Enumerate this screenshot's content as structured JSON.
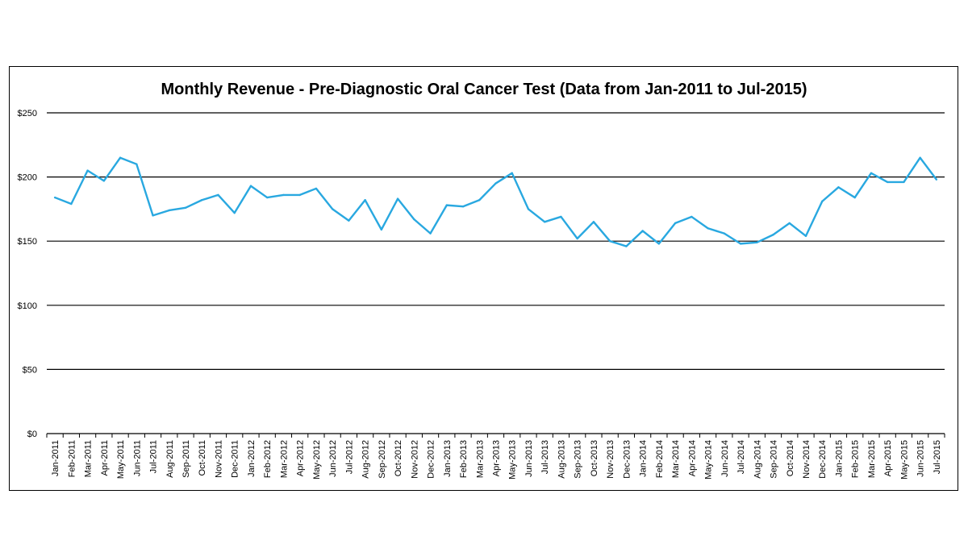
{
  "chart_data": {
    "type": "line",
    "title": "Monthly Revenue - Pre-Diagnostic Oral Cancer Test (Data from Jan-2011 to Jul-2015)",
    "xlabel": "",
    "ylabel": "",
    "ylim": [
      0,
      250
    ],
    "yticks": [
      0,
      50,
      100,
      150,
      200,
      250
    ],
    "ytick_labels": [
      "$0",
      "$50",
      "$100",
      "$150",
      "$200",
      "$250"
    ],
    "grid": true,
    "line_color": "#29a8e0",
    "categories": [
      "Jan-2011",
      "Feb-2011",
      "Mar-2011",
      "Apr-2011",
      "May-2011",
      "Jun-2011",
      "Jul-2011",
      "Aug-2011",
      "Sep-2011",
      "Oct-2011",
      "Nov-2011",
      "Dec-2011",
      "Jan-2012",
      "Feb-2012",
      "Mar-2012",
      "Apr-2012",
      "May-2012",
      "Jun-2012",
      "Jul-2012",
      "Aug-2012",
      "Sep-2012",
      "Oct-2012",
      "Nov-2012",
      "Dec-2012",
      "Jan-2013",
      "Feb-2013",
      "Mar-2013",
      "Apr-2013",
      "May-2013",
      "Jun-2013",
      "Jul-2013",
      "Aug-2013",
      "Sep-2013",
      "Oct-2013",
      "Nov-2013",
      "Dec-2013",
      "Jan-2014",
      "Feb-2014",
      "Mar-2014",
      "Apr-2014",
      "May-2014",
      "Jun-2014",
      "Jul-2014",
      "Aug-2014",
      "Sep-2014",
      "Oct-2014",
      "Nov-2014",
      "Dec-2014",
      "Jan-2015",
      "Feb-2015",
      "Mar-2015",
      "Apr-2015",
      "May-2015",
      "Jun-2015",
      "Jul-2015"
    ],
    "series": [
      {
        "name": "Monthly Revenue",
        "values": [
          184,
          179,
          205,
          197,
          215,
          210,
          170,
          174,
          176,
          182,
          186,
          172,
          193,
          184,
          186,
          186,
          191,
          175,
          166,
          182,
          159,
          183,
          167,
          156,
          178,
          177,
          182,
          195,
          203,
          175,
          165,
          169,
          152,
          165,
          150,
          146,
          158,
          148,
          164,
          169,
          160,
          156,
          148,
          149,
          155,
          164,
          154,
          181,
          192,
          184,
          203,
          196,
          196,
          215,
          198
        ]
      }
    ]
  }
}
